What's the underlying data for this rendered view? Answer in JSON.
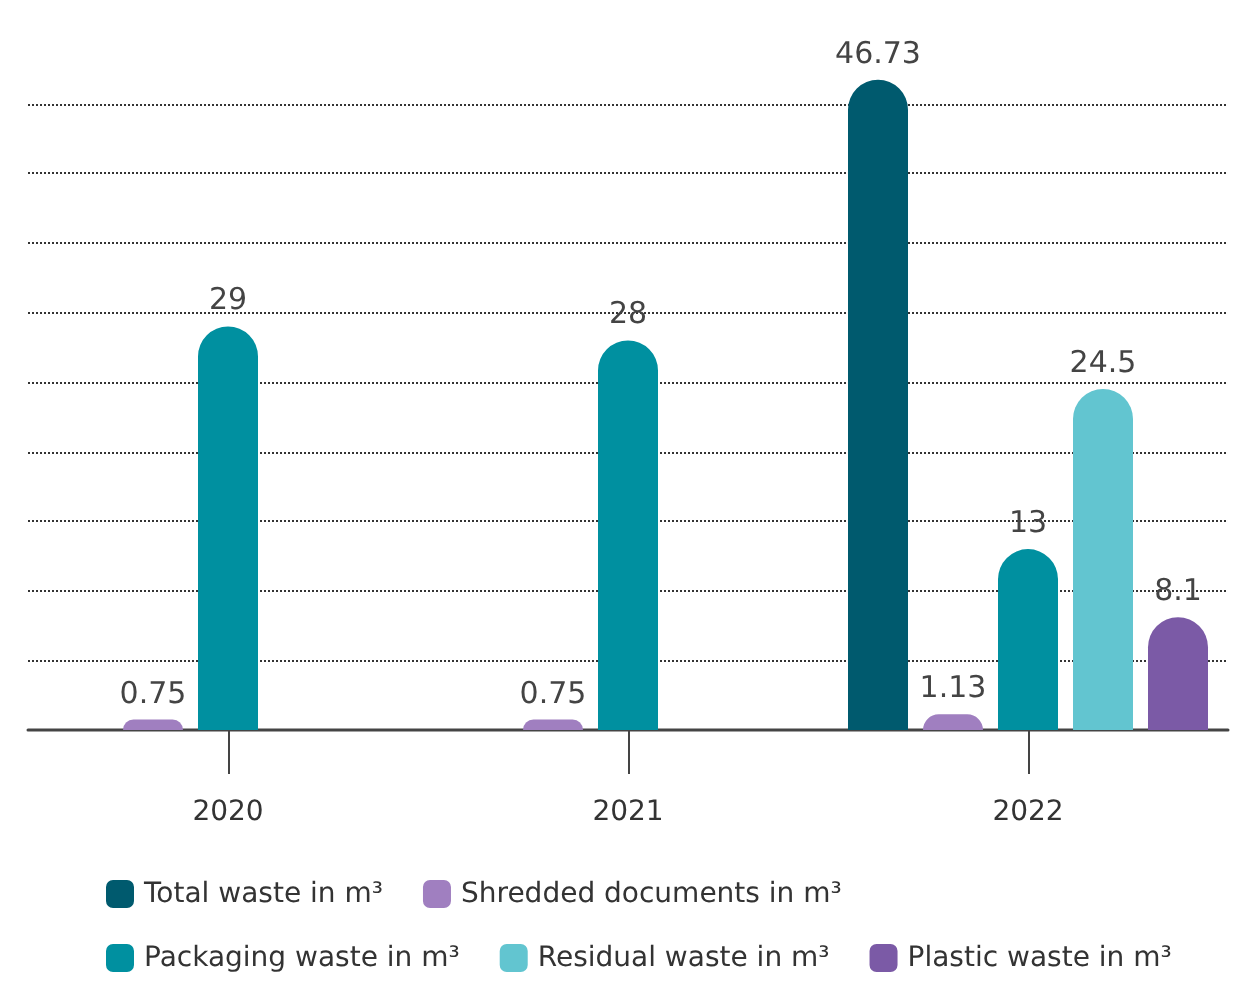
{
  "chart_data": {
    "type": "bar",
    "categories": [
      "2020",
      "2021",
      "2022"
    ],
    "series": [
      {
        "name": "Total waste in m³",
        "color": "#005a6e",
        "values": [
          null,
          null,
          46.73
        ]
      },
      {
        "name": "Shredded documents in m³",
        "color": "#a07fc0",
        "values": [
          0.75,
          0.75,
          1.13
        ]
      },
      {
        "name": "Packaging waste in m³",
        "color": "#0090a0",
        "values": [
          29,
          28,
          13
        ]
      },
      {
        "name": "Residual waste in m³",
        "color": "#62c5d0",
        "values": [
          null,
          null,
          24.5
        ]
      },
      {
        "name": "Plastic waste in m³",
        "color": "#7b5aa6",
        "values": [
          null,
          null,
          8.1
        ]
      }
    ],
    "ylim": [
      0,
      47
    ],
    "yticks": [
      {
        "value": 5,
        "label": null
      },
      {
        "value": 10,
        "label": null
      },
      {
        "value": 15,
        "label": null
      },
      {
        "value": 20,
        "label": null
      },
      {
        "value": 25,
        "label": null
      },
      {
        "value": 30,
        "label": null
      },
      {
        "value": 35,
        "label": null
      },
      {
        "value": 40,
        "label": null
      },
      {
        "value": 45,
        "label": null
      }
    ],
    "tick_labels": "x",
    "grid": "y",
    "legend": "bottom",
    "data_labels": true
  }
}
